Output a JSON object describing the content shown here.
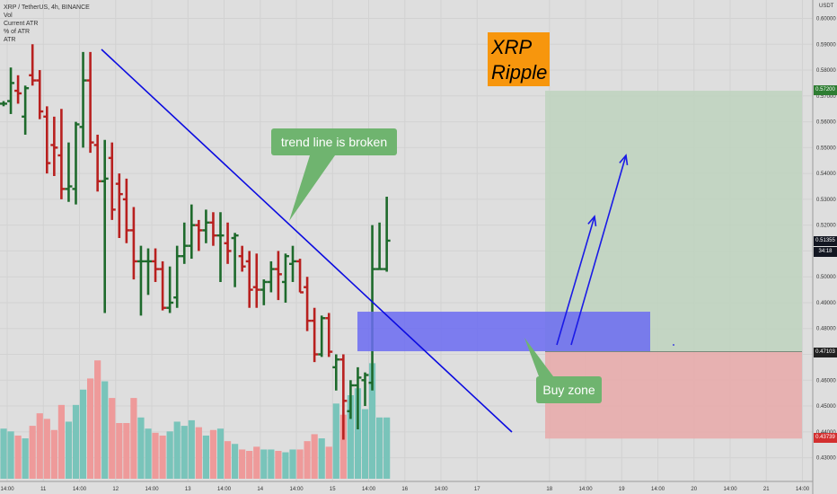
{
  "legend": {
    "symbol": "XRP / TetherUS, 4h, BINANCE",
    "lines": [
      "Vol",
      "Current ATR",
      "% of ATR",
      "ATR"
    ]
  },
  "annotations": {
    "trend_line": "trend line is broken",
    "buy_zone": "Buy zone",
    "logo_line1": "XRP",
    "logo_line2": "Ripple"
  },
  "price_axis": {
    "currency": "USDT",
    "current_price": "0.51355",
    "countdown": "34:18",
    "target_price": "0.57200",
    "entry_price": "0.47103",
    "stop_price": "0.43739"
  },
  "colors": {
    "up": "#1e6a2c",
    "down": "#b8201f",
    "vol_up": "#79c4ba",
    "vol_down": "#ee9a9a",
    "trendline": "#0b0be0",
    "zone": "#6b6bf2",
    "target_zone": "#bed4be",
    "stop_zone": "#e8acac"
  },
  "chart_data": {
    "type": "ohlc",
    "title": "XRP / TetherUS, 4h, BINANCE",
    "y_ticks": [
      0.6,
      0.59,
      0.58,
      0.57,
      0.56,
      0.55,
      0.54,
      0.53,
      0.52,
      0.51,
      0.5,
      0.49,
      0.48,
      0.47,
      0.46,
      0.45,
      0.44,
      0.43
    ],
    "y_tick_labels": [
      "0.60000",
      "0.59000",
      "0.58000",
      "0.57000",
      "0.56000",
      "0.55000",
      "0.54000",
      "0.53000",
      "0.52000",
      "0.51000",
      "0.50000",
      "0.49000",
      "0.48000",
      "0.47000",
      "0.46000",
      "0.45000",
      "0.44000",
      "0.43000"
    ],
    "ylim": [
      0.427,
      0.603
    ],
    "x_labels": [
      "14:00",
      "11",
      "14:00",
      "12",
      "14:00",
      "13",
      "14:00",
      "14",
      "14:00",
      "15",
      "14:00",
      "16",
      "14:00",
      "17",
      "18",
      "14:00",
      "19",
      "14:00",
      "20",
      "14:00",
      "21",
      "14:00"
    ],
    "x_label_bars": [
      0.5,
      5.5,
      10.5,
      15.5,
      20.5,
      25.5,
      30.5,
      35.5,
      40.5,
      45.5,
      50.5,
      55.5,
      60.5,
      65.5,
      75.5,
      80.5,
      85.5,
      90.5,
      95.5,
      100.5,
      105.5,
      110.5
    ],
    "bars": [
      {
        "o": 0.567,
        "h": 0.568,
        "l": 0.566,
        "c": 0.567,
        "v": 0.36
      },
      {
        "o": 0.568,
        "h": 0.581,
        "l": 0.563,
        "c": 0.575,
        "v": 0.34
      },
      {
        "o": 0.572,
        "h": 0.578,
        "l": 0.567,
        "c": 0.571,
        "v": 0.31
      },
      {
        "o": 0.562,
        "h": 0.574,
        "l": 0.555,
        "c": 0.573,
        "v": 0.29
      },
      {
        "o": 0.578,
        "h": 0.59,
        "l": 0.574,
        "c": 0.576,
        "v": 0.38
      },
      {
        "o": 0.576,
        "h": 0.58,
        "l": 0.561,
        "c": 0.564,
        "v": 0.47
      },
      {
        "o": 0.562,
        "h": 0.566,
        "l": 0.54,
        "c": 0.544,
        "v": 0.43
      },
      {
        "o": 0.551,
        "h": 0.562,
        "l": 0.539,
        "c": 0.55,
        "v": 0.35
      },
      {
        "o": 0.547,
        "h": 0.565,
        "l": 0.53,
        "c": 0.534,
        "v": 0.53
      },
      {
        "o": 0.534,
        "h": 0.552,
        "l": 0.529,
        "c": 0.535,
        "v": 0.41
      },
      {
        "o": 0.534,
        "h": 0.56,
        "l": 0.528,
        "c": 0.559,
        "v": 0.53
      },
      {
        "o": 0.558,
        "h": 0.587,
        "l": 0.55,
        "c": 0.576,
        "v": 0.64
      },
      {
        "o": 0.576,
        "h": 0.587,
        "l": 0.548,
        "c": 0.552,
        "v": 0.72
      },
      {
        "o": 0.551,
        "h": 0.555,
        "l": 0.533,
        "c": 0.537,
        "v": 0.85
      },
      {
        "o": 0.537,
        "h": 0.553,
        "l": 0.486,
        "c": 0.538,
        "v": 0.7
      },
      {
        "o": 0.546,
        "h": 0.552,
        "l": 0.522,
        "c": 0.526,
        "v": 0.58
      },
      {
        "o": 0.536,
        "h": 0.54,
        "l": 0.515,
        "c": 0.532,
        "v": 0.4
      },
      {
        "o": 0.53,
        "h": 0.538,
        "l": 0.513,
        "c": 0.518,
        "v": 0.4
      },
      {
        "o": 0.518,
        "h": 0.527,
        "l": 0.499,
        "c": 0.506,
        "v": 0.58
      },
      {
        "o": 0.506,
        "h": 0.512,
        "l": 0.485,
        "c": 0.506,
        "v": 0.44
      },
      {
        "o": 0.506,
        "h": 0.511,
        "l": 0.493,
        "c": 0.506,
        "v": 0.36
      },
      {
        "o": 0.506,
        "h": 0.511,
        "l": 0.498,
        "c": 0.503,
        "v": 0.33
      },
      {
        "o": 0.503,
        "h": 0.506,
        "l": 0.487,
        "c": 0.488,
        "v": 0.31
      },
      {
        "o": 0.488,
        "h": 0.504,
        "l": 0.486,
        "c": 0.49,
        "v": 0.34
      },
      {
        "o": 0.492,
        "h": 0.512,
        "l": 0.488,
        "c": 0.508,
        "v": 0.41
      },
      {
        "o": 0.508,
        "h": 0.521,
        "l": 0.505,
        "c": 0.512,
        "v": 0.38
      },
      {
        "o": 0.512,
        "h": 0.528,
        "l": 0.507,
        "c": 0.52,
        "v": 0.42
      },
      {
        "o": 0.52,
        "h": 0.522,
        "l": 0.51,
        "c": 0.518,
        "v": 0.37
      },
      {
        "o": 0.518,
        "h": 0.526,
        "l": 0.513,
        "c": 0.521,
        "v": 0.31
      },
      {
        "o": 0.521,
        "h": 0.525,
        "l": 0.512,
        "c": 0.516,
        "v": 0.35
      },
      {
        "o": 0.516,
        "h": 0.525,
        "l": 0.498,
        "c": 0.516,
        "v": 0.36
      },
      {
        "o": 0.513,
        "h": 0.521,
        "l": 0.505,
        "c": 0.51,
        "v": 0.27
      },
      {
        "o": 0.515,
        "h": 0.517,
        "l": 0.496,
        "c": 0.516,
        "v": 0.25
      },
      {
        "o": 0.508,
        "h": 0.512,
        "l": 0.502,
        "c": 0.504,
        "v": 0.21
      },
      {
        "o": 0.506,
        "h": 0.51,
        "l": 0.488,
        "c": 0.495,
        "v": 0.2
      },
      {
        "o": 0.496,
        "h": 0.509,
        "l": 0.488,
        "c": 0.495,
        "v": 0.23
      },
      {
        "o": 0.495,
        "h": 0.499,
        "l": 0.489,
        "c": 0.498,
        "v": 0.21
      },
      {
        "o": 0.498,
        "h": 0.506,
        "l": 0.494,
        "c": 0.503,
        "v": 0.21
      },
      {
        "o": 0.503,
        "h": 0.51,
        "l": 0.491,
        "c": 0.501,
        "v": 0.2
      },
      {
        "o": 0.498,
        "h": 0.509,
        "l": 0.49,
        "c": 0.508,
        "v": 0.19
      },
      {
        "o": 0.505,
        "h": 0.512,
        "l": 0.498,
        "c": 0.506,
        "v": 0.21
      },
      {
        "o": 0.506,
        "h": 0.507,
        "l": 0.494,
        "c": 0.494,
        "v": 0.21
      },
      {
        "o": 0.496,
        "h": 0.5,
        "l": 0.479,
        "c": 0.483,
        "v": 0.27
      },
      {
        "o": 0.483,
        "h": 0.488,
        "l": 0.467,
        "c": 0.47,
        "v": 0.32
      },
      {
        "o": 0.47,
        "h": 0.485,
        "l": 0.469,
        "c": 0.484,
        "v": 0.29
      },
      {
        "o": 0.484,
        "h": 0.486,
        "l": 0.469,
        "c": 0.471,
        "v": 0.23
      },
      {
        "o": 0.465,
        "h": 0.47,
        "l": 0.456,
        "c": 0.468,
        "v": 0.54
      },
      {
        "o": 0.468,
        "h": 0.47,
        "l": 0.437,
        "c": 0.452,
        "v": 0.46
      },
      {
        "o": 0.448,
        "h": 0.46,
        "l": 0.445,
        "c": 0.458,
        "v": 0.6
      },
      {
        "o": 0.458,
        "h": 0.465,
        "l": 0.441,
        "c": 0.461,
        "v": 0.65
      },
      {
        "o": 0.46,
        "h": 0.463,
        "l": 0.45,
        "c": 0.462,
        "v": 0.5
      },
      {
        "o": 0.459,
        "h": 0.52,
        "l": 0.456,
        "c": 0.503,
        "v": 0.83
      },
      {
        "o": 0.503,
        "h": 0.521,
        "l": 0.503,
        "c": 0.503,
        "v": 0.44
      },
      {
        "o": 0.503,
        "h": 0.531,
        "l": 0.502,
        "c": 0.514,
        "v": 0.44
      }
    ]
  }
}
